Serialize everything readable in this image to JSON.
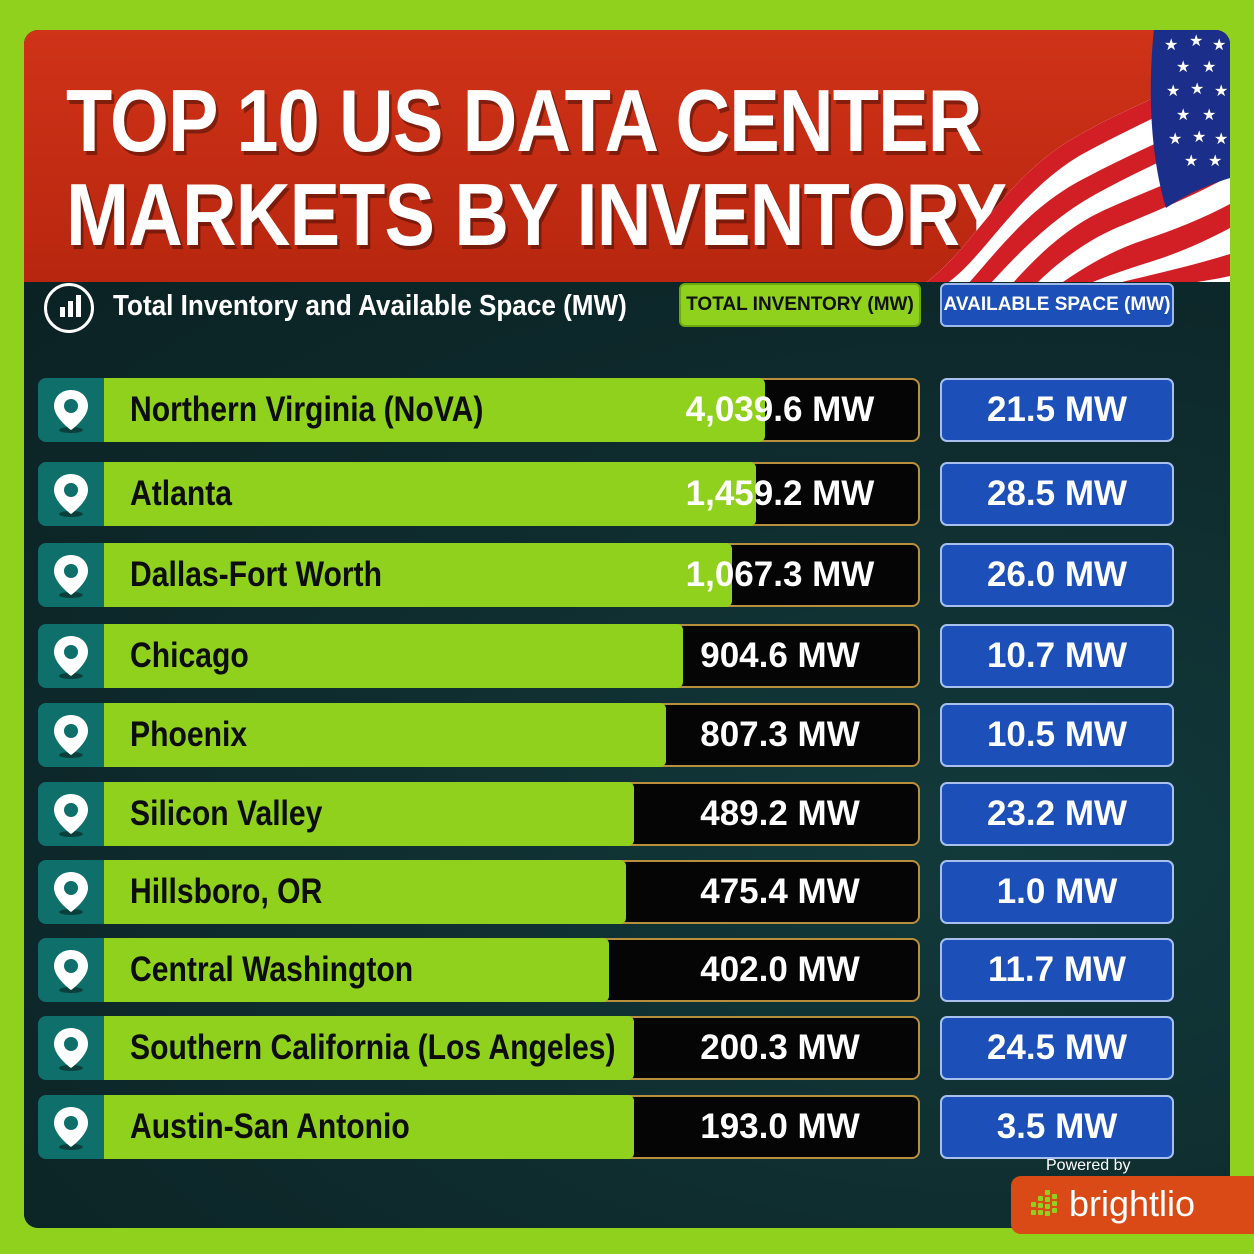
{
  "header": {
    "title_line1": "TOP 10 US DATA CENTER",
    "title_line2": "MARKETS BY INVENTORY"
  },
  "legend": {
    "label": "Total Inventory and Available Space (MW)",
    "icon": "bar-chart-icon"
  },
  "columns": {
    "total": "TOTAL INVENTORY (MW)",
    "available": "AVAILABLE SPACE (MW)"
  },
  "colors": {
    "background": "#8fd11c",
    "header": "#c42d14",
    "panel": "#0f2c2e",
    "total_bar": "#8fd11c",
    "available_box": "#1c4fb8",
    "pin_box": "#0f6f6a",
    "brand": "#d94a16"
  },
  "footer": {
    "powered_by": "Powered by",
    "brand": "brightlio"
  },
  "chart_data": {
    "type": "bar",
    "title": "TOP 10 US DATA CENTER MARKETS BY INVENTORY",
    "subtitle": "Total Inventory and Available Space (MW)",
    "categories": [
      "Northern Virginia (NoVA)",
      "Atlanta",
      "Dallas-Fort Worth",
      "Chicago",
      "Phoenix",
      "Silicon Valley",
      "Hillsboro, OR",
      "Central Washington",
      "Southern California (Los Angeles)",
      "Austin-San Antonio"
    ],
    "series": [
      {
        "name": "TOTAL INVENTORY (MW)",
        "values": [
          4039.6,
          1459.2,
          1067.3,
          904.6,
          807.3,
          489.2,
          475.4,
          402.0,
          200.3,
          193.0
        ],
        "labels": [
          "4,039.6 MW",
          "1,459.2 MW",
          "1,067.3 MW",
          "904.6 MW",
          "807.3 MW",
          "489.2 MW",
          "475.4 MW",
          "402.0 MW",
          "200.3 MW",
          "193.0 MW"
        ]
      },
      {
        "name": "AVAILABLE SPACE (MW)",
        "values": [
          21.5,
          28.5,
          26.0,
          10.7,
          10.5,
          23.2,
          1.0,
          11.7,
          24.5,
          3.5
        ],
        "labels": [
          "21.5 MW",
          "28.5 MW",
          "26.0 MW",
          "10.7 MW",
          "10.5 MW",
          "23.2 MW",
          "1.0 MW",
          "11.7 MW",
          "24.5 MW",
          "3.5 MW"
        ]
      }
    ],
    "bar_fill_fraction": [
      0.81,
      0.8,
      0.77,
      0.71,
      0.69,
      0.65,
      0.64,
      0.62,
      0.65,
      0.65
    ]
  }
}
